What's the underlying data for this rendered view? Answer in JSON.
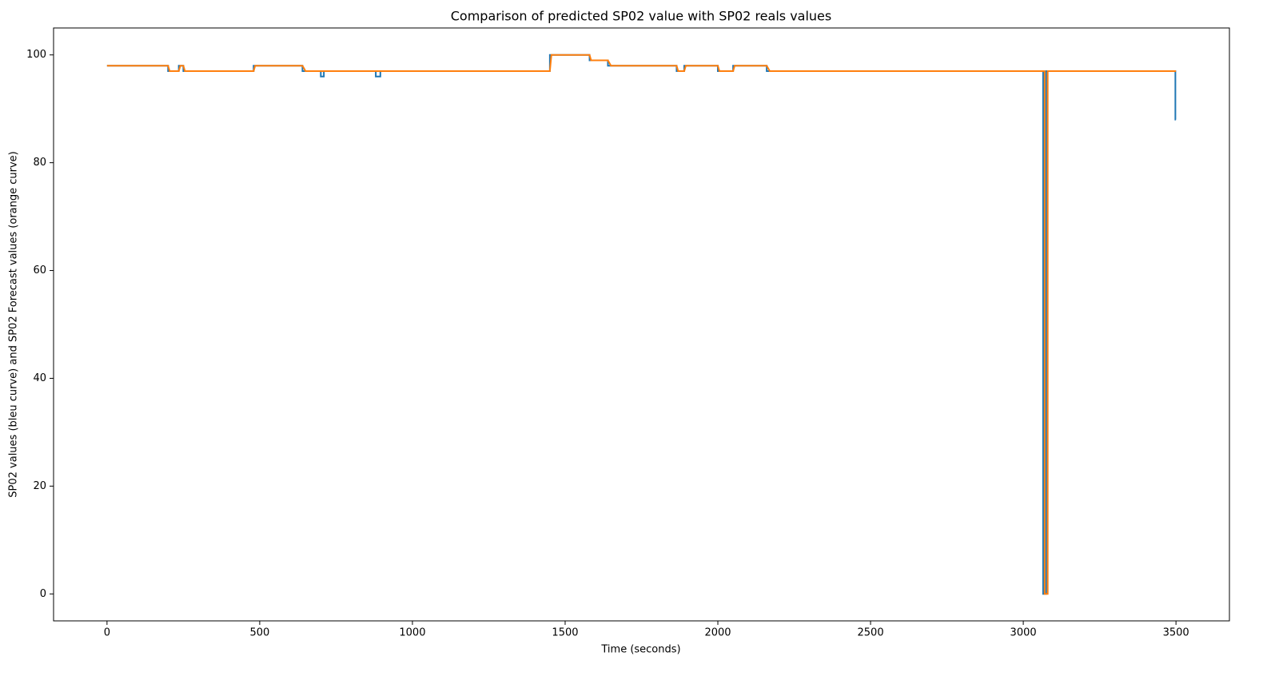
{
  "chart_data": {
    "type": "line",
    "title": "Comparison of predicted SP02 value with SP02 reals values",
    "x_label": "Time (seconds)",
    "y_label": "SP02 values (bleu curve)   and SP02   Forecast values (orange curve)",
    "x": [
      0,
      200,
      200,
      205,
      235,
      235,
      240,
      250,
      250,
      255,
      480,
      480,
      485,
      640,
      640,
      650,
      700,
      700,
      710,
      710,
      880,
      880,
      895,
      895,
      1450,
      1450,
      1455,
      1580,
      1580,
      1585,
      1640,
      1640,
      1650,
      1865,
      1865,
      1870,
      1890,
      1890,
      1895,
      2000,
      2000,
      2005,
      2050,
      2050,
      2055,
      2160,
      2160,
      2170,
      3065,
      3065,
      3070,
      3070,
      3075,
      3075,
      3080,
      3080,
      3498,
      3498,
      3500
    ],
    "series": [
      {
        "color": "#1f77b4",
        "values": [
          98,
          98,
          97,
          97,
          97,
          98,
          98,
          98,
          97,
          97,
          97,
          98,
          98,
          98,
          97,
          97,
          97,
          96,
          96,
          97,
          97,
          96,
          96,
          97,
          97,
          100,
          100,
          100,
          99,
          99,
          99,
          98,
          98,
          98,
          97,
          97,
          97,
          98,
          98,
          98,
          97,
          97,
          97,
          98,
          98,
          98,
          97,
          97,
          97,
          0,
          0,
          0,
          0,
          97,
          97,
          97,
          97,
          88,
          88
        ]
      },
      {
        "color": "#ff7f0e",
        "values": [
          98,
          98,
          98,
          97,
          97,
          97,
          98,
          98,
          98,
          97,
          97,
          97,
          98,
          98,
          98,
          97,
          97,
          97,
          97,
          97,
          97,
          97,
          97,
          97,
          97,
          97,
          100,
          100,
          100,
          99,
          99,
          99,
          98,
          98,
          98,
          97,
          97,
          97,
          98,
          98,
          98,
          97,
          97,
          97,
          98,
          98,
          98,
          97,
          97,
          97,
          97,
          0,
          0,
          0,
          0,
          97,
          97,
          97,
          97
        ]
      }
    ],
    "xlim": [
      -175,
      3675
    ],
    "ylim": [
      -5,
      105
    ],
    "xticks": [
      0,
      500,
      1000,
      1500,
      2000,
      2500,
      3000,
      3500
    ],
    "yticks": [
      0,
      20,
      40,
      60,
      80,
      100
    ],
    "grid": false
  }
}
